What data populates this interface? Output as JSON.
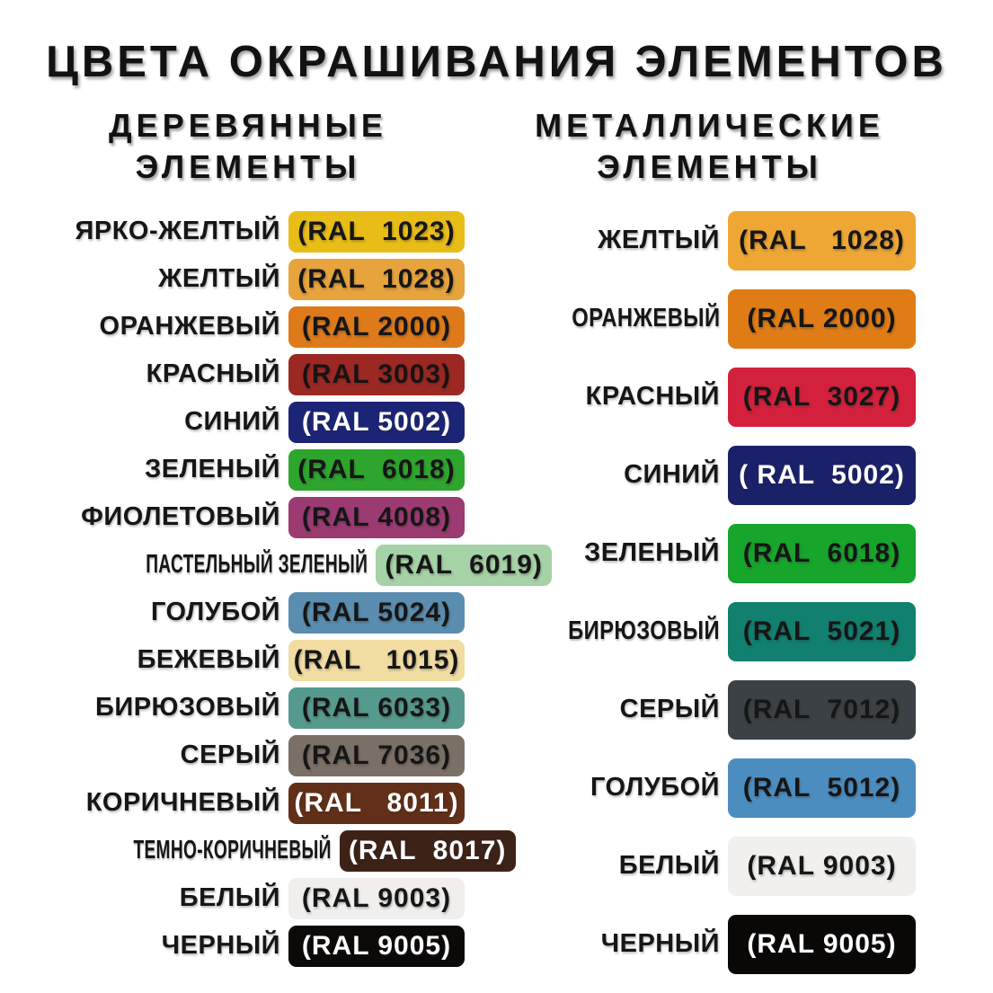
{
  "title": "ЦВЕТА ОКРАШИВАНИЯ ЭЛЕМЕНТОВ",
  "chart_data": {
    "type": "table",
    "groups": [
      {
        "header": [
          "ДЕРЕВЯННЫЕ",
          "ЭЛЕМЕНТЫ"
        ],
        "rows": [
          {
            "label": "ЯРКО-ЖЕЛТЫЙ",
            "ral": "(RAL  1023)",
            "hex": "#E9BD17",
            "text": "#161616",
            "condensed": false
          },
          {
            "label": "ЖЕЛТЫЙ",
            "ral": "(RAL  1028)",
            "hex": "#E7A33C",
            "text": "#161616",
            "condensed": false
          },
          {
            "label": "ОРАНЖЕВЫЙ",
            "ral": "(RAL 2000)",
            "hex": "#DE7A1A",
            "text": "#161616",
            "condensed": false
          },
          {
            "label": "КРАСНЫЙ",
            "ral": "(RAL 3003)",
            "hex": "#9C2823",
            "text": "#1A1212",
            "condensed": false
          },
          {
            "label": "СИНИЙ",
            "ral": "(RAL 5002)",
            "hex": "#1C2476",
            "text": "#FFFFFF",
            "condensed": false
          },
          {
            "label": "ЗЕЛЕНЫЙ",
            "ral": "(RAL  6018)",
            "hex": "#2EA62E",
            "text": "#161616",
            "condensed": false
          },
          {
            "label": "ФИОЛЕТОВЫЙ",
            "ral": "(RAL 4008)",
            "hex": "#9C3B72",
            "text": "#161616",
            "condensed": false
          },
          {
            "label": "ПАСТЕЛЬНЫЙ ЗЕЛЕНЫЙ",
            "ral": "(RAL  6019)",
            "hex": "#A5D2A6",
            "text": "#161616",
            "condensed": true
          },
          {
            "label": "ГОЛУБОЙ",
            "ral": "(RAL 5024)",
            "hex": "#5A8DAF",
            "text": "#161616",
            "condensed": false
          },
          {
            "label": "БЕЖЕВЫЙ",
            "ral": "(RAL   1015)",
            "hex": "#F1DCA2",
            "text": "#161616",
            "condensed": false
          },
          {
            "label": "БИРЮЗОВЫЙ",
            "ral": "(RAL 6033)",
            "hex": "#569A8D",
            "text": "#161616",
            "condensed": false
          },
          {
            "label": "СЕРЫЙ",
            "ral": "(RAL 7036)",
            "hex": "#7B7066",
            "text": "#161616",
            "condensed": false
          },
          {
            "label": "КОРИЧНЕВЫЙ",
            "ral": "(RAL   8011)",
            "hex": "#622F18",
            "text": "#FFFFFF",
            "condensed": false
          },
          {
            "label": "ТЕМНО-КОРИЧНЕВЫЙ",
            "ral": "(RAL  8017)",
            "hex": "#3D2217",
            "text": "#FFFFFF",
            "condensed": true
          },
          {
            "label": "БЕЛЫЙ",
            "ral": "(RAL 9003)",
            "hex": "#F1EFED",
            "text": "#161616",
            "condensed": false
          },
          {
            "label": "ЧЕРНЫЙ",
            "ral": "(RAL 9005)",
            "hex": "#0C0A08",
            "text": "#FFFFFF",
            "condensed": false
          }
        ]
      },
      {
        "header": [
          "МЕТАЛЛИЧЕСКИЕ",
          "ЭЛЕМЕНТЫ"
        ],
        "rows": [
          {
            "label": "ЖЕЛТЫЙ",
            "ral": "(RAL   1028)",
            "hex": "#EEA734",
            "text": "#161616",
            "condensed": false
          },
          {
            "label": "ОРАНЖЕВЫЙ",
            "ral": "(RAL 2000)",
            "hex": "#E07C15",
            "text": "#161616",
            "condensed": true
          },
          {
            "label": "КРАСНЫЙ",
            "ral": "(RAL  3027)",
            "hex": "#D3203C",
            "text": "#161616",
            "condensed": false
          },
          {
            "label": "СИНИЙ",
            "ral": "( RAL  5002)",
            "hex": "#1B2169",
            "text": "#FFFFFF",
            "condensed": false
          },
          {
            "label": "ЗЕЛЕНЫЙ",
            "ral": "(RAL  6018)",
            "hex": "#17A52C",
            "text": "#161616",
            "condensed": false
          },
          {
            "label": "БИРЮЗОВЫЙ",
            "ral": "(RAL  5021)",
            "hex": "#11806F",
            "text": "#161616",
            "condensed": true
          },
          {
            "label": "СЕРЫЙ",
            "ral": "(RAL  7012)",
            "hex": "#3B4144",
            "text": "#161616",
            "condensed": false
          },
          {
            "label": "ГОЛУБОЙ",
            "ral": "(RAL  5012)",
            "hex": "#4C8DC0",
            "text": "#161616",
            "condensed": false
          },
          {
            "label": "БЕЛЫЙ",
            "ral": "(RAL 9003)",
            "hex": "#F1F0EE",
            "text": "#161616",
            "condensed": false
          },
          {
            "label": "ЧЕРНЫЙ",
            "ral": "(RAL 9005)",
            "hex": "#0A0807",
            "text": "#FFFFFF",
            "condensed": false
          }
        ]
      }
    ]
  }
}
